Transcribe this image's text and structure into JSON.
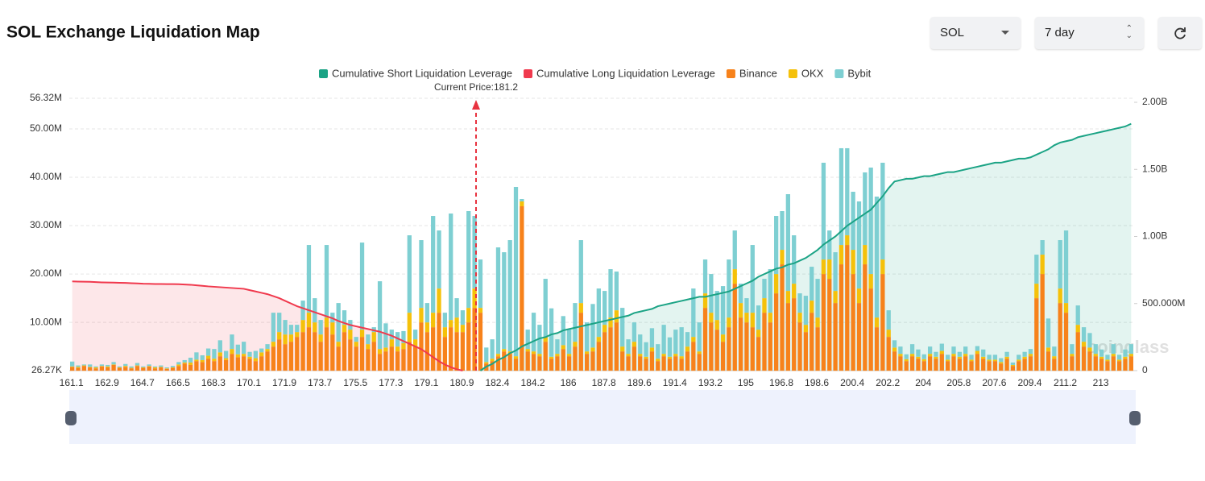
{
  "chart_data": {
    "type": "stacked-bar-line",
    "title": "SOL Exchange Liquidation Map",
    "controls": {
      "coin": "SOL",
      "period": "7 day"
    },
    "annotation": "Current Price:181.2",
    "watermark": "coinglass",
    "categories": [
      "161.1",
      null,
      null,
      null,
      null,
      null,
      "162.9",
      null,
      null,
      null,
      null,
      null,
      "164.7",
      null,
      null,
      null,
      null,
      null,
      "166.5",
      null,
      null,
      null,
      null,
      null,
      "168.3",
      null,
      null,
      null,
      null,
      null,
      "170.1",
      null,
      null,
      null,
      null,
      null,
      "171.9",
      null,
      null,
      null,
      null,
      null,
      "173.7",
      null,
      null,
      null,
      null,
      null,
      "175.5",
      null,
      null,
      null,
      null,
      null,
      "177.3",
      null,
      null,
      null,
      null,
      null,
      "179.1",
      null,
      null,
      null,
      null,
      null,
      "180.9",
      null,
      null,
      null,
      null,
      null,
      "182.4",
      null,
      null,
      null,
      null,
      null,
      "184.2",
      null,
      null,
      null,
      null,
      null,
      "186",
      null,
      null,
      null,
      null,
      null,
      "187.8",
      null,
      null,
      null,
      null,
      null,
      "189.6",
      null,
      null,
      null,
      null,
      null,
      "191.4",
      null,
      null,
      null,
      null,
      null,
      "193.2",
      null,
      null,
      null,
      null,
      null,
      "195",
      null,
      null,
      null,
      null,
      null,
      "196.8",
      null,
      null,
      null,
      null,
      null,
      "198.6",
      null,
      null,
      null,
      null,
      null,
      "200.4",
      null,
      null,
      null,
      null,
      null,
      "202.2",
      null,
      null,
      null,
      null,
      null,
      "204",
      null,
      null,
      null,
      null,
      null,
      "205.8",
      null,
      null,
      null,
      null,
      null,
      "207.6",
      null,
      null,
      null,
      null,
      null,
      "209.4",
      null,
      null,
      null,
      null,
      null,
      "211.2",
      null,
      null,
      null,
      null,
      null,
      "213",
      null,
      null,
      null,
      null,
      null
    ],
    "ylim": [
      0.02627,
      56.32
    ],
    "yticks": [
      {
        "value": 0.02627,
        "label": "26.27K"
      },
      {
        "value": 10,
        "label": "10.00M"
      },
      {
        "value": 20,
        "label": "20.00M"
      },
      {
        "value": 30,
        "label": "30.00M"
      },
      {
        "value": 40,
        "label": "40.00M"
      },
      {
        "value": 50,
        "label": "50.00M"
      },
      {
        "value": 56.32,
        "label": "56.32M"
      }
    ],
    "y2lim": [
      0,
      2
    ],
    "y2ticks": [
      0,
      {
        "value": 0.5,
        "label": "500.000M"
      },
      {
        "value": 1,
        "label": "1.00B"
      },
      {
        "value": 1.5,
        "label": "1.50B"
      },
      {
        "value": 2,
        "label": "2.00B"
      }
    ],
    "grid": true,
    "series": [
      {
        "name": "Cumulative Short Liquidation Leverage",
        "color": "#1ba385",
        "type": "line",
        "axis": "y2",
        "values": [
          null,
          null,
          null,
          null,
          null,
          null,
          null,
          null,
          null,
          null,
          null,
          null,
          null,
          null,
          null,
          null,
          null,
          null,
          null,
          null,
          null,
          null,
          null,
          null,
          null,
          null,
          null,
          null,
          null,
          null,
          null,
          null,
          null,
          null,
          null,
          null,
          null,
          null,
          null,
          null,
          null,
          null,
          null,
          null,
          null,
          null,
          null,
          null,
          null,
          null,
          null,
          null,
          null,
          null,
          null,
          null,
          null,
          null,
          null,
          null,
          null,
          null,
          null,
          null,
          null,
          null,
          null,
          null,
          null,
          0.0,
          0.03,
          0.05,
          0.08,
          0.1,
          0.13,
          0.15,
          0.18,
          0.2,
          0.22,
          0.24,
          0.25,
          0.27,
          0.28,
          0.3,
          0.31,
          0.32,
          0.33,
          0.34,
          0.35,
          0.36,
          0.37,
          0.38,
          0.39,
          0.4,
          0.41,
          0.43,
          0.44,
          0.45,
          0.46,
          0.48,
          0.49,
          0.5,
          0.51,
          0.52,
          0.53,
          0.54,
          0.55,
          0.55,
          0.56,
          0.57,
          0.58,
          0.59,
          0.61,
          0.63,
          0.65,
          0.67,
          0.7,
          0.72,
          0.74,
          0.76,
          0.77,
          0.79,
          0.8,
          0.82,
          0.84,
          0.87,
          0.9,
          0.94,
          0.97,
          1.0,
          1.04,
          1.08,
          1.11,
          1.14,
          1.17,
          1.2,
          1.25,
          1.3,
          1.36,
          1.41,
          1.42,
          1.43,
          1.43,
          1.44,
          1.45,
          1.45,
          1.46,
          1.47,
          1.48,
          1.48,
          1.49,
          1.5,
          1.51,
          1.52,
          1.53,
          1.54,
          1.55,
          1.55,
          1.56,
          1.57,
          1.58,
          1.58,
          1.59,
          1.61,
          1.63,
          1.65,
          1.68,
          1.7,
          1.71,
          1.72,
          1.74,
          1.75,
          1.76,
          1.77,
          1.78,
          1.79,
          1.8,
          1.81,
          1.82,
          1.84
        ]
      },
      {
        "name": "Cumulative Long Liquidation Leverage",
        "color": "#f0394d",
        "type": "line",
        "axis": "y2",
        "values": [
          0.665,
          0.664,
          0.663,
          0.662,
          0.66,
          0.658,
          0.657,
          0.656,
          0.655,
          0.654,
          0.652,
          0.65,
          0.648,
          0.647,
          0.646,
          0.646,
          0.645,
          0.645,
          0.644,
          0.642,
          0.64,
          0.636,
          0.632,
          0.628,
          0.625,
          0.622,
          0.619,
          0.616,
          0.613,
          0.61,
          0.6,
          0.59,
          0.58,
          0.57,
          0.555,
          0.54,
          0.52,
          0.5,
          0.48,
          0.465,
          0.45,
          0.435,
          0.42,
          0.405,
          0.39,
          0.37,
          0.355,
          0.34,
          0.33,
          0.32,
          0.31,
          0.3,
          0.29,
          0.275,
          0.26,
          0.24,
          0.22,
          0.2,
          0.18,
          0.16,
          0.13,
          0.1,
          0.07,
          0.045,
          0.025,
          0.01,
          0.0,
          null,
          null,
          null,
          null,
          null,
          null,
          null,
          null,
          null,
          null,
          null,
          null,
          null,
          null,
          null,
          null,
          null,
          null,
          null,
          null,
          null,
          null,
          null,
          null,
          null,
          null,
          null,
          null,
          null,
          null,
          null,
          null,
          null,
          null,
          null,
          null,
          null,
          null,
          null,
          null,
          null,
          null,
          null,
          null,
          null,
          null,
          null,
          null,
          null,
          null,
          null,
          null,
          null,
          null,
          null,
          null,
          null,
          null,
          null,
          null,
          null,
          null,
          null,
          null,
          null,
          null,
          null,
          null,
          null,
          null,
          null,
          null,
          null,
          null,
          null,
          null,
          null,
          null,
          null,
          null,
          null,
          null,
          null,
          null,
          null,
          null,
          null,
          null,
          null,
          null,
          null,
          null,
          null,
          null,
          null,
          null,
          null,
          null,
          null,
          null,
          null,
          null,
          null,
          null,
          null,
          null,
          null,
          null,
          null,
          null,
          null,
          null,
          null
        ]
      },
      {
        "name": "Binance",
        "color": "#f7821b",
        "type": "bar",
        "values": [
          0.8,
          0.6,
          1.0,
          0.7,
          0.5,
          0.9,
          0.7,
          1.2,
          0.6,
          0.8,
          0.5,
          1.0,
          0.6,
          0.9,
          0.5,
          0.7,
          0.4,
          0.6,
          1.0,
          1.5,
          1.2,
          2.0,
          1.8,
          2.5,
          2.0,
          3.0,
          2.2,
          3.5,
          2.8,
          3.0,
          2.5,
          2.0,
          3.0,
          4.0,
          5.0,
          6.5,
          5.5,
          6.0,
          7.0,
          8.0,
          9.0,
          8.0,
          6.0,
          9.0,
          7.5,
          5.0,
          8.0,
          6.5,
          5.0,
          7.0,
          4.5,
          6.0,
          3.5,
          4.0,
          5.0,
          4.0,
          4.5,
          6.0,
          5.0,
          10.0,
          8.0,
          9.0,
          12.0,
          7.0,
          9.0,
          8.0,
          8.0,
          10.0,
          13.0,
          12.0,
          1.5,
          2.0,
          3.0,
          4.0,
          3.5,
          2.5,
          34.0,
          4.0,
          3.5,
          3.0,
          6.0,
          2.5,
          3.0,
          4.5,
          3.0,
          5.0,
          12.0,
          3.5,
          4.0,
          6.0,
          8.0,
          9.0,
          10.0,
          4.0,
          3.0,
          5.0,
          3.0,
          2.5,
          4.0,
          2.0,
          3.0,
          2.5,
          3.0,
          2.5,
          4.0,
          6.0,
          3.5,
          13.0,
          10.0,
          8.5,
          6.0,
          9.0,
          18.0,
          11.0,
          10.0,
          9.0,
          7.0,
          12.0,
          10.0,
          16.0,
          22.0,
          14.0,
          15.0,
          10.0,
          8.0,
          12.0,
          9.0,
          20.0,
          19.0,
          14.0,
          22.0,
          26.0,
          20.0,
          14.0,
          22.0,
          17.0,
          9.0,
          20.0,
          7.0,
          4.0,
          3.0,
          2.0,
          3.0,
          2.5,
          2.0,
          3.0,
          2.5,
          3.5,
          2.0,
          3.0,
          2.5,
          3.0,
          2.0,
          3.5,
          2.5,
          2.0,
          2.0,
          1.5,
          2.5,
          1.0,
          2.0,
          2.5,
          3.0,
          15.0,
          20.0,
          4.0,
          2.5,
          14.0,
          12.0,
          3.0,
          8.0,
          5.0,
          4.0,
          3.0,
          2.5,
          2.0,
          3.0,
          2.0,
          2.5,
          3.0
        ]
      },
      {
        "name": "OKX",
        "color": "#f5c10a",
        "type": "bar",
        "values": [
          0.1,
          0.2,
          0.1,
          0.1,
          0.2,
          0.1,
          0.2,
          0.1,
          0.1,
          0.2,
          0.1,
          0.1,
          0.1,
          0.1,
          0.2,
          0.1,
          0.1,
          0.1,
          0.3,
          0.2,
          0.5,
          0.3,
          0.4,
          0.6,
          0.5,
          0.8,
          0.4,
          1.0,
          0.6,
          0.5,
          0.4,
          0.6,
          0.8,
          0.5,
          1.0,
          1.5,
          2.0,
          1.5,
          1.0,
          2.5,
          3.0,
          2.0,
          1.5,
          2.0,
          2.5,
          1.0,
          1.5,
          2.0,
          1.0,
          1.5,
          1.0,
          2.0,
          1.0,
          0.8,
          1.5,
          1.0,
          1.2,
          6.0,
          1.5,
          3.0,
          2.0,
          3.0,
          5.0,
          2.0,
          1.5,
          3.0,
          1.5,
          3.0,
          4.0,
          1.0,
          0.3,
          0.5,
          0.5,
          0.5,
          0.5,
          0.5,
          1.0,
          0.5,
          0.5,
          0.5,
          1.0,
          0.4,
          0.5,
          0.8,
          0.5,
          1.0,
          2.0,
          0.5,
          0.8,
          1.0,
          1.5,
          2.0,
          2.5,
          1.0,
          0.5,
          1.0,
          0.5,
          0.4,
          0.8,
          0.5,
          0.5,
          0.4,
          0.5,
          0.5,
          1.0,
          1.0,
          0.5,
          3.0,
          2.0,
          2.0,
          1.5,
          2.0,
          3.0,
          3.0,
          2.0,
          3.0,
          1.5,
          3.0,
          2.0,
          4.0,
          3.0,
          2.5,
          3.0,
          2.0,
          1.5,
          2.5,
          2.0,
          3.0,
          4.0,
          2.5,
          4.0,
          2.0,
          5.0,
          3.0,
          4.0,
          3.0,
          2.0,
          3.0,
          1.5,
          0.8,
          0.5,
          0.4,
          0.5,
          0.4,
          0.4,
          0.5,
          0.4,
          0.6,
          0.3,
          0.5,
          0.4,
          0.5,
          0.3,
          0.6,
          0.4,
          0.3,
          0.3,
          0.3,
          0.4,
          0.2,
          0.3,
          0.4,
          0.5,
          3.0,
          4.0,
          0.8,
          0.5,
          3.0,
          2.0,
          0.5,
          1.5,
          1.0,
          0.8,
          0.5,
          0.4,
          0.3,
          0.5,
          0.3,
          0.4,
          0.5
        ]
      },
      {
        "name": "Bybit",
        "color": "#7ecfd2",
        "type": "bar",
        "values": [
          1.0,
          0.3,
          0.2,
          0.5,
          0.2,
          0.3,
          0.3,
          0.5,
          0.2,
          0.4,
          0.3,
          0.5,
          0.2,
          0.3,
          0.2,
          0.3,
          0.2,
          0.3,
          0.5,
          0.5,
          1.0,
          1.5,
          1.0,
          1.5,
          2.0,
          2.5,
          1.5,
          3.0,
          2.0,
          2.5,
          1.0,
          1.5,
          0.8,
          1.0,
          6.0,
          4.0,
          3.0,
          2.0,
          1.5,
          4.0,
          14.0,
          5.0,
          3.0,
          15.0,
          2.0,
          8.0,
          3.0,
          2.0,
          1.0,
          18.0,
          2.0,
          1.0,
          14.0,
          5.0,
          2.0,
          3.0,
          2.5,
          16.0,
          2.0,
          14.0,
          4.0,
          20.0,
          12.0,
          3.0,
          22.0,
          4.0,
          3.0,
          20.0,
          15.0,
          10.0,
          3.0,
          4.0,
          22.0,
          20.0,
          23.0,
          35.0,
          0.5,
          4.0,
          8.0,
          6.0,
          12.0,
          10.0,
          3.0,
          6.0,
          5.0,
          8.0,
          13.0,
          6.0,
          9.0,
          10.0,
          7.0,
          10.0,
          8.0,
          8.0,
          3.0,
          4.0,
          4.0,
          3.0,
          4.0,
          3.0,
          6.0,
          4.0,
          5.0,
          6.0,
          3.0,
          10.0,
          6.0,
          7.0,
          8.0,
          6.0,
          10.0,
          12.0,
          8.0,
          4.0,
          3.0,
          14.0,
          5.0,
          4.0,
          9.0,
          12.0,
          8.0,
          20.0,
          10.0,
          4.0,
          6.0,
          7.0,
          8.0,
          20.0,
          6.0,
          8.0,
          20.0,
          18.0,
          12.0,
          18.0,
          15.0,
          22.0,
          25.0,
          20.0,
          4.0,
          1.5,
          1.5,
          1.0,
          2.0,
          1.5,
          1.0,
          1.5,
          1.0,
          1.5,
          1.0,
          1.5,
          1.0,
          1.5,
          1.0,
          1.0,
          1.5,
          1.0,
          1.0,
          0.8,
          1.0,
          0.5,
          1.0,
          1.0,
          1.0,
          6.0,
          3.0,
          6.0,
          2.0,
          10.0,
          15.0,
          2.0,
          4.0,
          3.0,
          3.0,
          2.0,
          1.5,
          1.0,
          2.0,
          1.0,
          1.5,
          2.0
        ]
      }
    ]
  }
}
